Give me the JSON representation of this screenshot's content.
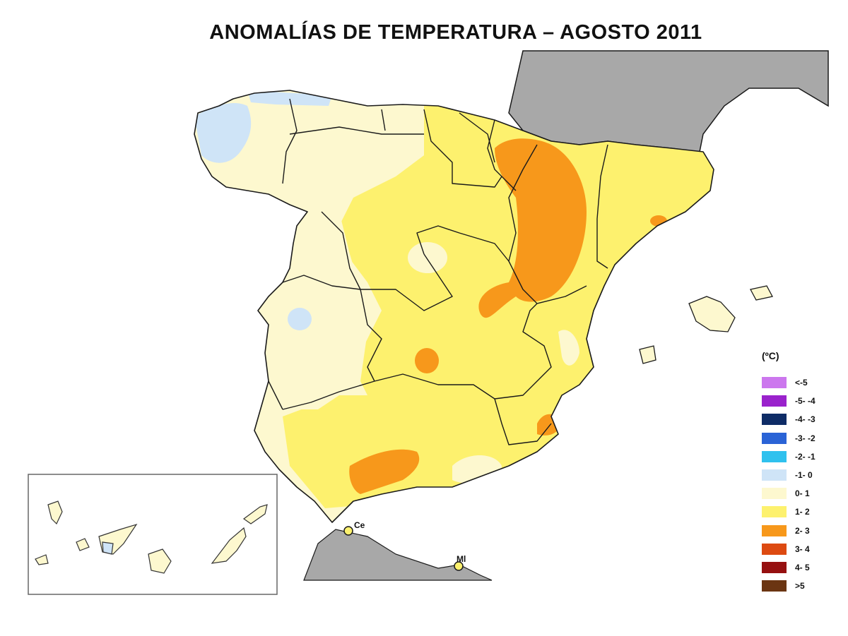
{
  "title": "ANOMALÍAS DE TEMPERATURA – AGOSTO 2011",
  "legend": {
    "unit": "(ºC)",
    "items": [
      {
        "label": "<-5",
        "color": "#cc77ee"
      },
      {
        "label": "-5- -4",
        "color": "#9a22cc"
      },
      {
        "label": "-4- -3",
        "color": "#0e2c66"
      },
      {
        "label": "-3- -2",
        "color": "#2a63d6"
      },
      {
        "label": "-2- -1",
        "color": "#2fc1ee"
      },
      {
        "label": "-1- 0",
        "color": "#cfe4f7"
      },
      {
        "label": "0- 1",
        "color": "#fdf8cf"
      },
      {
        "label": "1- 2",
        "color": "#fdf16e"
      },
      {
        "label": "2- 3",
        "color": "#f7981b"
      },
      {
        "label": "3- 4",
        "color": "#dd4a11"
      },
      {
        "label": "4- 5",
        "color": "#961010"
      },
      {
        "label": ">5",
        "color": "#6b3512"
      }
    ]
  },
  "map": {
    "places": [
      {
        "label": "Ce"
      },
      {
        "label": "Ml"
      }
    ],
    "colors": {
      "foreign_land": "#a8a8a8",
      "sea": "#ffffff",
      "border": "#1a1a1a"
    }
  }
}
